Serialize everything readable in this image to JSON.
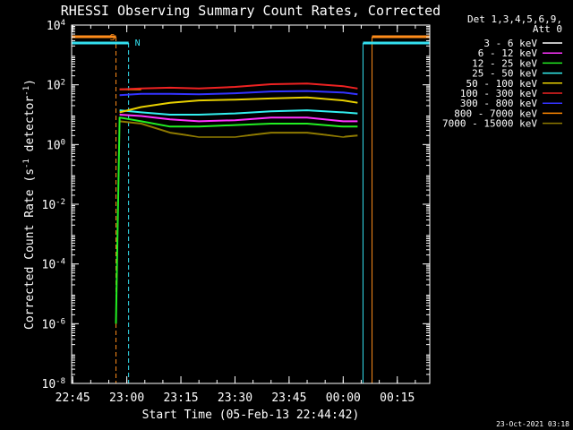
{
  "title": "RHESSI Observing Summary Count Rates, Corrected",
  "colors": {
    "background": "#000000",
    "foreground": "#ffffff",
    "saa": "#ff8c1a",
    "night": "#33e0f0"
  },
  "chart_data": {
    "type": "line",
    "title": "RHESSI Observing Summary Count Rates, Corrected",
    "xlabel": "Start Time (05-Feb-13 22:44:42)",
    "ylabel": "Corrected Count Rate (s^-1 detector^-1)",
    "yscale": "log",
    "ylim": [
      1e-08,
      10000.0
    ],
    "xlim": [
      "22:44:42",
      "00:24:00"
    ],
    "x_ticks": [
      "22:45",
      "23:00",
      "23:15",
      "23:30",
      "23:45",
      "00:00",
      "00:15"
    ],
    "y_ticks": [
      "10^4",
      "10^2",
      "10^0",
      "10^-2",
      "10^-4",
      "10^-6",
      "10^-8"
    ],
    "legend": {
      "placement": "right",
      "header": [
        "Det 1,3,4,5,6,9,",
        "Att 0"
      ],
      "entries": [
        {
          "name": "3 - 6 keV",
          "color": "#ffffff"
        },
        {
          "name": "6 - 12 keV",
          "color": "#ff33ff"
        },
        {
          "name": "12 - 25 keV",
          "color": "#22ee22"
        },
        {
          "name": "25 - 50 keV",
          "color": "#33f0f0"
        },
        {
          "name": "50 - 100 keV",
          "color": "#e8d000"
        },
        {
          "name": "100 - 300 keV",
          "color": "#ee2222"
        },
        {
          "name": "300 - 800 keV",
          "color": "#3333ff"
        },
        {
          "name": "800 - 7000 keV",
          "color": "#ff8800"
        },
        {
          "name": "7000 - 15000 keV",
          "color": "#8f7a00"
        }
      ]
    },
    "series": [
      {
        "name": "3 - 6 keV",
        "color": "#000000",
        "x": [
          "22:58",
          "23:04",
          "23:12",
          "23:20",
          "23:30",
          "23:40",
          "23:50",
          "00:00",
          "00:04"
        ],
        "y": [
          8,
          6,
          3,
          2,
          2,
          3,
          3,
          2,
          3
        ]
      },
      {
        "name": "6 - 12 keV",
        "color": "#ff33ff",
        "x": [
          "22:58",
          "23:04",
          "23:12",
          "23:20",
          "23:30",
          "23:40",
          "23:50",
          "00:00",
          "00:04"
        ],
        "y": [
          10,
          9,
          7,
          6,
          6.5,
          8,
          8,
          6,
          6
        ]
      },
      {
        "name": "12 - 25 keV",
        "color": "#22ee22",
        "x": [
          "22:57",
          "22:58",
          "23:04",
          "23:12",
          "23:20",
          "23:30",
          "23:40",
          "23:50",
          "00:00",
          "00:04"
        ],
        "y": [
          1e-06,
          8,
          6,
          4,
          4,
          4.5,
          5,
          5,
          4,
          4
        ]
      },
      {
        "name": "25 - 50 keV",
        "color": "#33f0f0",
        "x": [
          "22:58",
          "23:04",
          "23:12",
          "23:20",
          "23:30",
          "23:40",
          "23:50",
          "00:00",
          "00:04"
        ],
        "y": [
          14,
          12,
          10,
          10,
          11,
          13,
          14,
          12,
          11
        ]
      },
      {
        "name": "50 - 100 keV",
        "color": "#e8d000",
        "x": [
          "22:58",
          "23:04",
          "23:12",
          "23:20",
          "23:30",
          "23:40",
          "23:50",
          "00:00",
          "00:04"
        ],
        "y": [
          12,
          18,
          25,
          30,
          32,
          35,
          38,
          30,
          25
        ]
      },
      {
        "name": "100 - 300 keV",
        "color": "#ee2222",
        "x": [
          "22:58",
          "23:04",
          "23:12",
          "23:20",
          "23:30",
          "23:40",
          "23:50",
          "00:00",
          "00:04"
        ],
        "y": [
          70,
          75,
          80,
          75,
          85,
          105,
          110,
          90,
          75
        ]
      },
      {
        "name": "300 - 800 keV",
        "color": "#3333ff",
        "x": [
          "22:58",
          "23:04",
          "23:12",
          "23:20",
          "23:30",
          "23:40",
          "23:50",
          "00:00",
          "00:04"
        ],
        "y": [
          45,
          50,
          50,
          48,
          52,
          60,
          62,
          55,
          48
        ]
      },
      {
        "name": "800 - 7000 keV",
        "color": "#ff8800",
        "x": [
          "22:58",
          "23:04"
        ],
        "y": [
          70,
          70
        ]
      },
      {
        "name": "7000 - 15000 keV",
        "color": "#8f7a00",
        "x": [
          "22:58",
          "23:04",
          "23:12",
          "23:20",
          "23:30",
          "23:40",
          "23:50",
          "00:00",
          "00:04"
        ],
        "y": [
          6,
          5,
          2.5,
          1.8,
          1.8,
          2.5,
          2.5,
          1.8,
          2
        ]
      }
    ],
    "markers": [
      {
        "label": "S",
        "color": "#ff8c1a"
      },
      {
        "label": "N",
        "color": "#33e0f0"
      }
    ],
    "saa_intervals": [
      [
        "22:44:42",
        "22:57:00"
      ],
      [
        "00:08:00",
        "00:24:00"
      ]
    ],
    "night_intervals": [
      [
        "22:44:42",
        "23:00:30"
      ],
      [
        "00:05:30",
        "00:24:00"
      ]
    ]
  },
  "footer": {
    "start_time_label": "Start Time (05-Feb-13 22:44:42)",
    "timestamp": "23-Oct-2021 03:18"
  }
}
